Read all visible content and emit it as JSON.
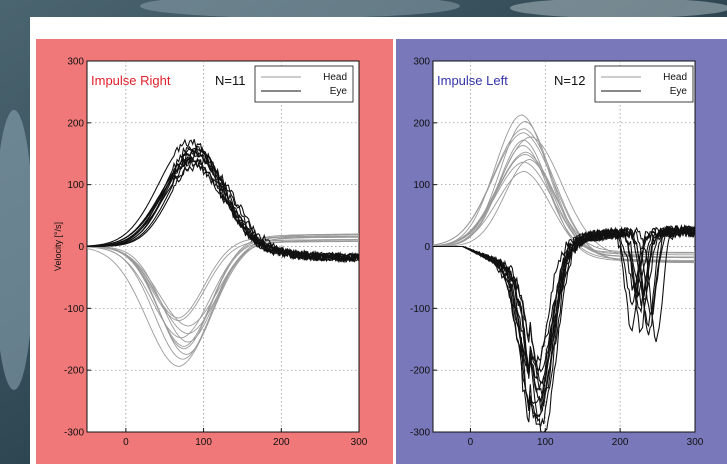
{
  "colors": {
    "right_panel_bg": "#f07878",
    "left_panel_bg": "#7878bb",
    "right_title": "#e0202a",
    "left_title": "#3333aa",
    "head_trace": "#9a9a9a",
    "eye_trace": "#111111"
  },
  "chart_data": [
    {
      "type": "line",
      "title": "Impulse Right",
      "count_label": "N=11",
      "xlabel": "",
      "ylabel": "Velocity [°/s]",
      "xlim": [
        -50,
        300
      ],
      "ylim": [
        -300,
        300
      ],
      "xticks": [
        "0",
        "100",
        "200",
        "300"
      ],
      "yticks": [
        "300",
        "200",
        "100",
        "0",
        "-100",
        "-200",
        "-300"
      ],
      "grid": true,
      "legend": {
        "position": "top-right",
        "entries": [
          "Head",
          "Eye"
        ]
      },
      "series": [
        {
          "name": "Head",
          "trials": 11,
          "peak_range": [
            -190,
            -115
          ],
          "peak_time_ms": 75,
          "end_ms": 220
        },
        {
          "name": "Eye",
          "trials": 11,
          "peak_range": [
            130,
            168
          ],
          "peak_time_ms": 88,
          "end_ms": 300
        }
      ]
    },
    {
      "type": "line",
      "title": "Impulse Left",
      "count_label": "N=12",
      "xlabel": "",
      "ylabel": "",
      "xlim": [
        -50,
        300
      ],
      "ylim": [
        -300,
        300
      ],
      "xticks": [
        "0",
        "100",
        "200",
        "300"
      ],
      "yticks": [
        "300",
        "200",
        "100",
        "0",
        "-100",
        "-200",
        "-300"
      ],
      "grid": true,
      "legend": {
        "position": "top-right",
        "entries": [
          "Head",
          "Eye"
        ]
      },
      "series": [
        {
          "name": "Head",
          "trials": 12,
          "peak_range": [
            125,
            210
          ],
          "peak_time_ms": 75,
          "end_ms": 300
        },
        {
          "name": "Eye",
          "trials": 12,
          "peak_range": [
            -300,
            -190
          ],
          "peak_time_ms": 92,
          "end_ms": 300
        }
      ]
    }
  ]
}
